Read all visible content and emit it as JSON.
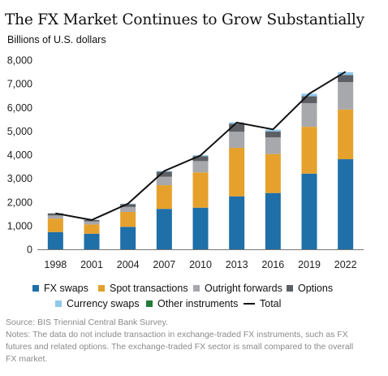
{
  "title": "The FX Market Continues to Grow Substantially",
  "units": "Billions of U.S. dollars",
  "chart_data": {
    "type": "bar",
    "stacked": true,
    "categories": [
      "1998",
      "2001",
      "2004",
      "2007",
      "2010",
      "2013",
      "2016",
      "2019",
      "2022"
    ],
    "ylim": [
      0,
      8000
    ],
    "yticks": [
      "0",
      "1,000",
      "2,000",
      "3,000",
      "4,000",
      "5,000",
      "6,000",
      "7,000",
      "8,000"
    ],
    "ytick_values": [
      0,
      1000,
      2000,
      3000,
      4000,
      5000,
      6000,
      7000,
      8000
    ],
    "series": [
      {
        "name": "FX swaps",
        "color": "#1f6fa8",
        "values": [
          730,
          660,
          950,
          1710,
          1760,
          2240,
          2380,
          3200,
          3810
        ]
      },
      {
        "name": "Spot transactions",
        "color": "#e5a12c",
        "values": [
          570,
          390,
          630,
          1000,
          1490,
          2050,
          1650,
          1980,
          2100
        ]
      },
      {
        "name": "Outright forwards",
        "color": "#a7a8ac",
        "values": [
          130,
          130,
          210,
          360,
          480,
          680,
          700,
          1000,
          1160
        ]
      },
      {
        "name": "Options",
        "color": "#5c5f63",
        "values": [
          90,
          60,
          120,
          210,
          210,
          340,
          250,
          290,
          300
        ]
      },
      {
        "name": "Currency swaps",
        "color": "#8fc8ec",
        "values": [
          10,
          10,
          20,
          30,
          40,
          60,
          80,
          110,
          120
        ]
      },
      {
        "name": "Other instruments",
        "color": "#237a3b",
        "values": [
          0,
          0,
          0,
          0,
          0,
          0,
          0,
          0,
          0
        ]
      }
    ],
    "total": {
      "name": "Total",
      "color": "#111111",
      "values": [
        1520,
        1240,
        1930,
        3310,
        3970,
        5360,
        5070,
        6580,
        7510
      ]
    },
    "xlabel": "",
    "ylabel": "Billions of U.S. dollars",
    "grid": false,
    "legend_position": "bottom"
  },
  "legend": {
    "row1": [
      "FX swaps",
      "Spot transactions",
      "Outright forwards",
      "Options"
    ],
    "row2": [
      "Currency swaps",
      "Other instruments",
      "Total"
    ]
  },
  "source": {
    "line1": "Source: BIS Triennial Central Bank Survey.",
    "line2": "Notes: The data do not include transaction in exchange-traded FX instruments, such as FX",
    "line3": "futures and related options. The exchange-traded FX sector is small compared to the overall",
    "line4": "FX market."
  }
}
